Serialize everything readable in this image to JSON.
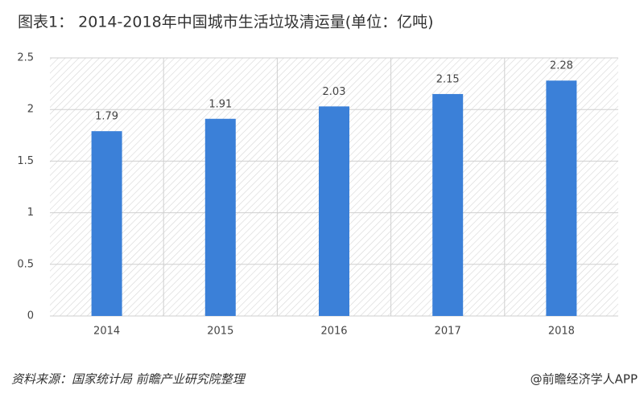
{
  "chart_data": {
    "type": "bar",
    "title": "图表1： 2014-2018年中国城市生活垃圾清运量(单位：亿吨)",
    "categories": [
      "2014",
      "2015",
      "2016",
      "2017",
      "2018"
    ],
    "values": [
      1.79,
      1.91,
      2.03,
      2.15,
      2.28
    ],
    "color": "#3b80d8",
    "ylim": [
      0,
      2.5
    ],
    "yticks": [
      0,
      0.5,
      1,
      1.5,
      2,
      2.5
    ],
    "grid": true,
    "source": "资料来源：国家统计局 前瞻产业研究院整理",
    "watermark": "@前瞻经济学人APP"
  }
}
